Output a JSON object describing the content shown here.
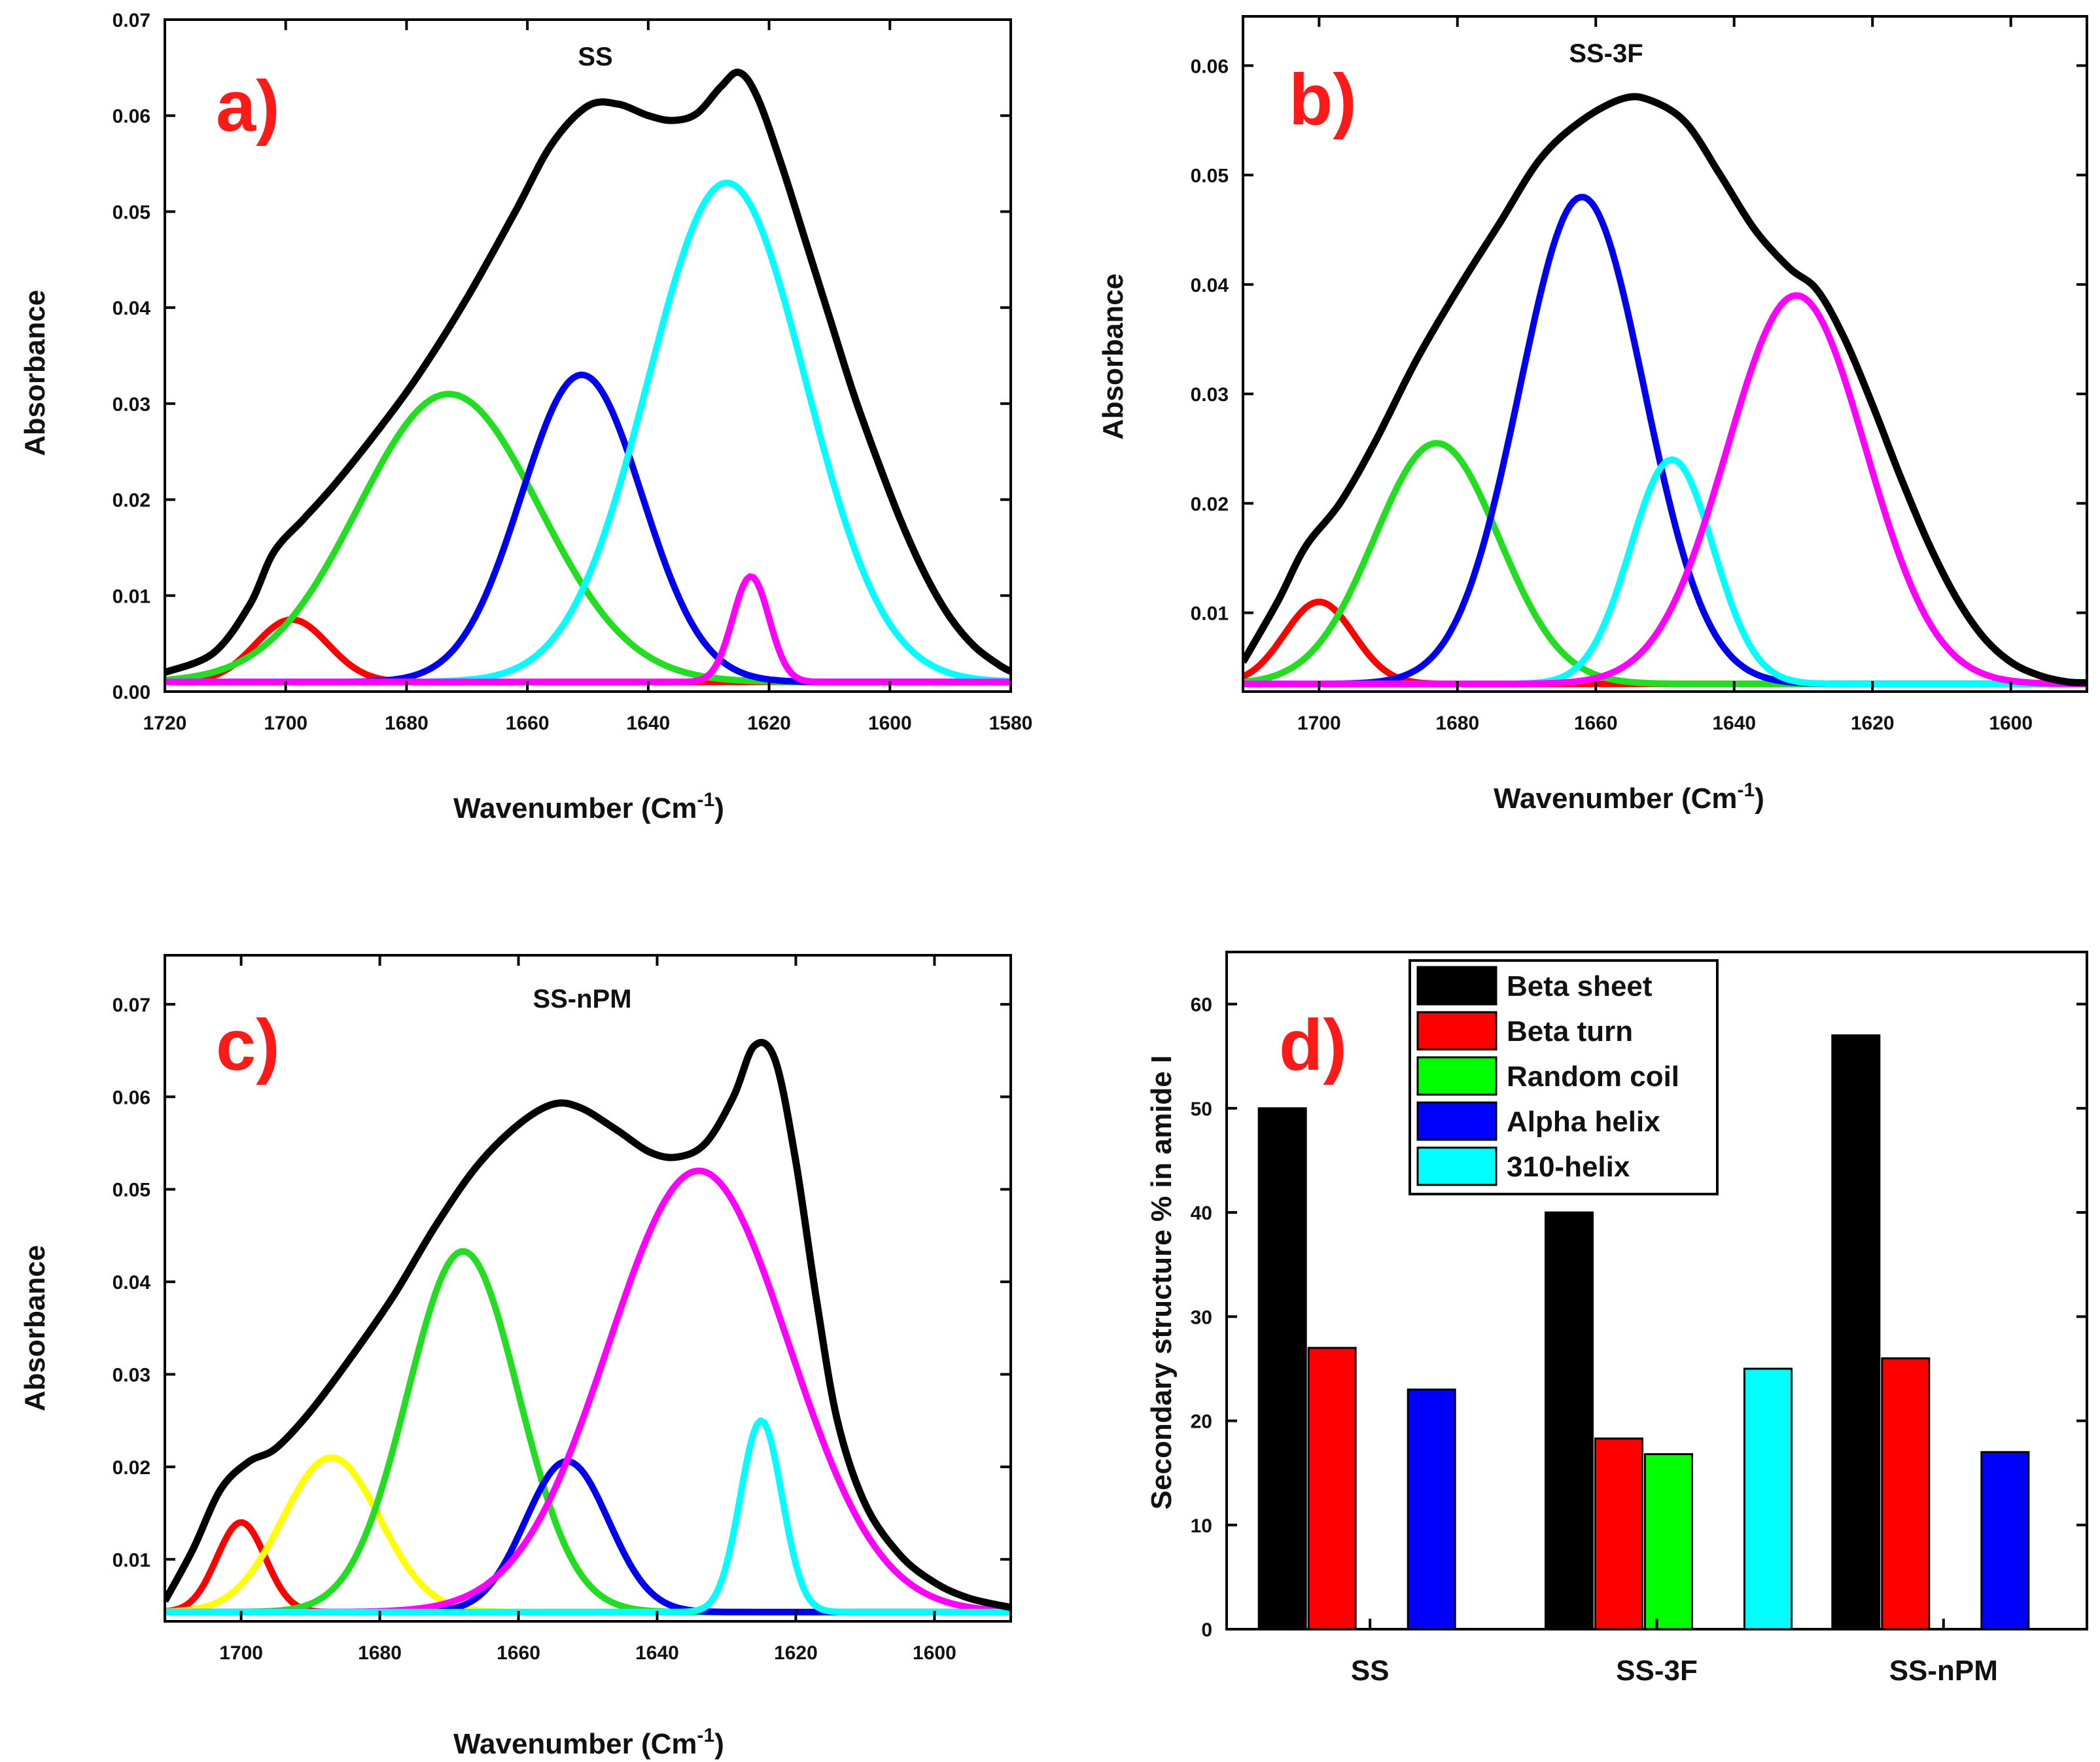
{
  "chart_data": [
    {
      "id": "a",
      "type": "line",
      "panel_label": "a)",
      "title": "SS",
      "xlabel": "Wavenumber (Cm",
      "xlabel_sup": "-1",
      "xlabel_end": ")",
      "ylabel": "Absorbance",
      "xlim": [
        1720,
        1580
      ],
      "ylim": [
        0,
        0.07
      ],
      "xticks": [
        1720,
        1700,
        1680,
        1660,
        1640,
        1620,
        1600,
        1580
      ],
      "xtick_labels": [
        "1720",
        "1700",
        "1680",
        "1660",
        "1640",
        "1620",
        "1600",
        "1580"
      ],
      "yticks": [
        0,
        0.01,
        0.02,
        0.03,
        0.04,
        0.05,
        0.06,
        0.07
      ],
      "ytick_labels": [
        "0.00",
        "0.01",
        "0.02",
        "0.03",
        "0.04",
        "0.05",
        "0.06",
        "0.07"
      ],
      "baseline": 0.001,
      "envelope": [
        [
          1720,
          0.002
        ],
        [
          1712,
          0.004
        ],
        [
          1706,
          0.009
        ],
        [
          1702,
          0.0145
        ],
        [
          1697,
          0.018
        ],
        [
          1692,
          0.0215
        ],
        [
          1685,
          0.027
        ],
        [
          1678,
          0.033
        ],
        [
          1670,
          0.041
        ],
        [
          1662,
          0.05
        ],
        [
          1656,
          0.057
        ],
        [
          1650,
          0.061
        ],
        [
          1645,
          0.0612
        ],
        [
          1640,
          0.06
        ],
        [
          1636,
          0.0595
        ],
        [
          1632,
          0.0602
        ],
        [
          1628,
          0.063
        ],
        [
          1625,
          0.0645
        ],
        [
          1622,
          0.062
        ],
        [
          1618,
          0.055
        ],
        [
          1614,
          0.047
        ],
        [
          1610,
          0.039
        ],
        [
          1606,
          0.031
        ],
        [
          1602,
          0.024
        ],
        [
          1598,
          0.0175
        ],
        [
          1594,
          0.012
        ],
        [
          1590,
          0.0077
        ],
        [
          1586,
          0.0047
        ],
        [
          1582,
          0.0028
        ],
        [
          1580,
          0.0021
        ]
      ],
      "series": [
        {
          "name": "red",
          "color": "#ff0000",
          "center": 1699,
          "amplitude": 0.0065,
          "width": 6
        },
        {
          "name": "green",
          "color": "#22dd22",
          "center": 1673,
          "amplitude": 0.03,
          "width": 15
        },
        {
          "name": "blue",
          "color": "#0000ee",
          "center": 1651,
          "amplitude": 0.032,
          "width": 10
        },
        {
          "name": "cyan",
          "color": "#00ffff",
          "center": 1627,
          "amplitude": 0.052,
          "width": 13
        },
        {
          "name": "magenta",
          "color": "#ff00ff",
          "center": 1623,
          "amplitude": 0.011,
          "width": 3
        }
      ]
    },
    {
      "id": "b",
      "type": "line",
      "panel_label": "b)",
      "title": "SS-3F",
      "xlabel": "Wavenumber (Cm",
      "xlabel_sup": "-1",
      "xlabel_end": ")",
      "ylabel": "Absorbance",
      "xlim": [
        1711,
        1589
      ],
      "ylim": [
        0.0028,
        0.0645
      ],
      "xticks": [
        1700,
        1680,
        1660,
        1640,
        1620,
        1600
      ],
      "xtick_labels": [
        "1700",
        "1680",
        "1660",
        "1640",
        "1620",
        "1600"
      ],
      "yticks": [
        0.01,
        0.02,
        0.03,
        0.04,
        0.05,
        0.06
      ],
      "ytick_labels": [
        "0.01",
        "0.02",
        "0.03",
        "0.04",
        "0.05",
        "0.06"
      ],
      "baseline": 0.0035,
      "envelope": [
        [
          1711,
          0.0055
        ],
        [
          1706,
          0.011
        ],
        [
          1702,
          0.016
        ],
        [
          1697,
          0.02
        ],
        [
          1692,
          0.0255
        ],
        [
          1686,
          0.033
        ],
        [
          1680,
          0.0395
        ],
        [
          1674,
          0.0455
        ],
        [
          1668,
          0.0515
        ],
        [
          1662,
          0.055
        ],
        [
          1656,
          0.057
        ],
        [
          1652,
          0.0568
        ],
        [
          1647,
          0.0548
        ],
        [
          1642,
          0.05
        ],
        [
          1637,
          0.045
        ],
        [
          1632,
          0.0415
        ],
        [
          1628,
          0.0395
        ],
        [
          1624,
          0.035
        ],
        [
          1620,
          0.029
        ],
        [
          1616,
          0.0225
        ],
        [
          1612,
          0.0165
        ],
        [
          1608,
          0.0115
        ],
        [
          1604,
          0.0078
        ],
        [
          1600,
          0.0055
        ],
        [
          1596,
          0.0043
        ],
        [
          1592,
          0.0037
        ],
        [
          1589,
          0.0036
        ]
      ],
      "series": [
        {
          "name": "red",
          "color": "#ff0000",
          "center": 1700,
          "amplitude": 0.0075,
          "width": 5
        },
        {
          "name": "green",
          "color": "#22dd22",
          "center": 1683,
          "amplitude": 0.022,
          "width": 9
        },
        {
          "name": "blue",
          "color": "#0000ee",
          "center": 1662,
          "amplitude": 0.0445,
          "width": 9
        },
        {
          "name": "cyan",
          "color": "#00ffff",
          "center": 1649,
          "amplitude": 0.0205,
          "width": 6
        },
        {
          "name": "magenta",
          "color": "#ff00ff",
          "center": 1631,
          "amplitude": 0.0355,
          "width": 10
        }
      ]
    },
    {
      "id": "c",
      "type": "line",
      "panel_label": "c)",
      "title": "SS-nPM",
      "xlabel": "Wavenumber (Cm",
      "xlabel_sup": "-1",
      "xlabel_end": ")",
      "ylabel": "Absorbance",
      "xlim": [
        1711,
        1589
      ],
      "ylim": [
        0.0033,
        0.0753
      ],
      "xticks": [
        1700,
        1680,
        1660,
        1640,
        1620,
        1600
      ],
      "xtick_labels": [
        "1700",
        "1680",
        "1660",
        "1640",
        "1620",
        "1600"
      ],
      "yticks": [
        0.01,
        0.02,
        0.03,
        0.04,
        0.05,
        0.06,
        0.07
      ],
      "ytick_labels": [
        "0.01",
        "0.02",
        "0.03",
        "0.04",
        "0.05",
        "0.06",
        "0.07"
      ],
      "baseline": 0.0043,
      "envelope": [
        [
          1711,
          0.0055
        ],
        [
          1707,
          0.011
        ],
        [
          1703,
          0.0175
        ],
        [
          1699,
          0.0205
        ],
        [
          1695,
          0.022
        ],
        [
          1690,
          0.026
        ],
        [
          1684,
          0.032
        ],
        [
          1678,
          0.0385
        ],
        [
          1672,
          0.046
        ],
        [
          1666,
          0.0525
        ],
        [
          1660,
          0.057
        ],
        [
          1655,
          0.0592
        ],
        [
          1651,
          0.0588
        ],
        [
          1646,
          0.0565
        ],
        [
          1641,
          0.054
        ],
        [
          1637,
          0.0535
        ],
        [
          1633,
          0.055
        ],
        [
          1629,
          0.06
        ],
        [
          1626,
          0.0655
        ],
        [
          1623,
          0.064
        ],
        [
          1620,
          0.053
        ],
        [
          1617,
          0.038
        ],
        [
          1614,
          0.025
        ],
        [
          1610,
          0.016
        ],
        [
          1605,
          0.0105
        ],
        [
          1600,
          0.0075
        ],
        [
          1595,
          0.0058
        ],
        [
          1589,
          0.0048
        ]
      ],
      "series": [
        {
          "name": "red",
          "color": "#ff0000",
          "center": 1700,
          "amplitude": 0.0097,
          "width": 3.5
        },
        {
          "name": "yellow",
          "color": "#ffff00",
          "center": 1687,
          "amplitude": 0.0167,
          "width": 7
        },
        {
          "name": "green",
          "color": "#22dd22",
          "center": 1668,
          "amplitude": 0.039,
          "width": 8
        },
        {
          "name": "blue",
          "color": "#0000ee",
          "center": 1653,
          "amplitude": 0.0163,
          "width": 6
        },
        {
          "name": "magenta",
          "color": "#ff00ff",
          "center": 1634,
          "amplitude": 0.0477,
          "width": 13
        },
        {
          "name": "cyan",
          "color": "#00ffff",
          "center": 1625,
          "amplitude": 0.0207,
          "width": 3
        }
      ]
    },
    {
      "id": "d",
      "type": "bar",
      "panel_label": "d)",
      "ylabel": "Secondary structure % in amide I",
      "ylim": [
        0,
        65
      ],
      "yticks": [
        0,
        10,
        20,
        30,
        40,
        50,
        60
      ],
      "ytick_labels": [
        "0",
        "10",
        "20",
        "30",
        "40",
        "50",
        "60"
      ],
      "categories": [
        "SS",
        "SS-3F",
        "SS-nPM"
      ],
      "series": [
        {
          "name": "Beta sheet",
          "color": "#000000",
          "values": [
            50,
            40,
            57
          ]
        },
        {
          "name": "Beta turn",
          "color": "#ff0000",
          "values": [
            27,
            18.3,
            26
          ]
        },
        {
          "name": "Random coil",
          "color": "#00ff00",
          "values": [
            0,
            16.8,
            0
          ]
        },
        {
          "name": "Alpha helix",
          "color": "#0000ff",
          "values": [
            23,
            0,
            17
          ]
        },
        {
          "name": "310-helix",
          "color": "#00ffff",
          "values": [
            0,
            25,
            0
          ]
        }
      ],
      "legend_position": "top-left"
    }
  ]
}
